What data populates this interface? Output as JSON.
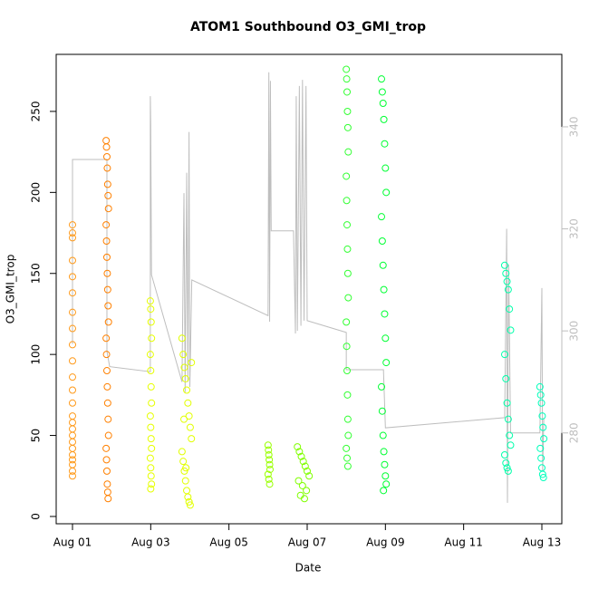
{
  "chart_data": {
    "type": "scatter",
    "title": "ATOM1 Southbound O3_GMI_trop",
    "xlabel": "Date",
    "ylabel": "O3_GMI_trop",
    "xlim": [
      0.583,
      13.51
    ],
    "ylim": [
      -4.5,
      285.2
    ],
    "y2lim": [
      262.2,
      354.2
    ],
    "xticks": [
      {
        "value": 1,
        "label": "Aug 01"
      },
      {
        "value": 3,
        "label": "Aug 03"
      },
      {
        "value": 5,
        "label": "Aug 05"
      },
      {
        "value": 7,
        "label": "Aug 07"
      },
      {
        "value": 9,
        "label": "Aug 09"
      },
      {
        "value": 11,
        "label": "Aug 11"
      },
      {
        "value": 13,
        "label": "Aug 13"
      }
    ],
    "yticks": [
      0,
      50,
      100,
      150,
      200,
      250
    ],
    "y2ticks": [
      280,
      300,
      320,
      340
    ],
    "y2color": "#bebebe",
    "series": [
      {
        "type": "line",
        "axis": "y2",
        "color": "#bebebe",
        "x": [
          1.0,
          1.0,
          1.88,
          1.88,
          1.95,
          2.99,
          2.99,
          3.0,
          3.02,
          3.8,
          3.85,
          3.88,
          3.92,
          3.95,
          3.98,
          4.0,
          4.05,
          6.0,
          6.02,
          6.04,
          6.06,
          6.08,
          6.65,
          6.7,
          6.72,
          6.75,
          6.8,
          6.84,
          6.88,
          6.92,
          6.97,
          7.0,
          8.0,
          8.0,
          8.95,
          9.0,
          12.05,
          12.1,
          12.12,
          12.15,
          12.2,
          12.95,
          13.0,
          13.02,
          13.05
        ],
        "values": [
          297.4,
          333.6,
          333.6,
          296,
          293,
          292,
          346,
          340.5,
          311,
          290,
          327,
          288,
          331,
          290,
          339,
          289,
          310,
          303,
          350.7,
          301.8,
          349,
          319.6,
          319.6,
          299.5,
          346,
          300,
          348,
          301,
          349.2,
          302,
          348,
          302,
          299.7,
          292.4,
          292.4,
          281,
          283,
          320,
          266.3,
          313,
          280,
          280,
          308.4,
          272.5,
          283
        ]
      },
      {
        "type": "points",
        "color": "#ff9a1a",
        "x": [
          1.0,
          1.0,
          1.0,
          1.0,
          1.0,
          1.0,
          1.0,
          1.0,
          1.0,
          1.0,
          1.0,
          1.0,
          1.0,
          1.0,
          1.0,
          1.0,
          1.0,
          1.0,
          1.0,
          1.0,
          1.0,
          1.0,
          1.0,
          1.0
        ],
        "values": [
          180,
          175,
          172,
          158,
          148,
          138,
          126,
          116,
          106,
          96,
          86,
          78,
          70,
          62,
          58,
          54,
          50,
          46,
          42,
          38,
          35,
          32,
          28,
          25
        ]
      },
      {
        "type": "points",
        "color": "#ff8000",
        "x": [
          1.86,
          1.87,
          1.88,
          1.89,
          1.9,
          1.91,
          1.92,
          1.86,
          1.87,
          1.88,
          1.89,
          1.9,
          1.91,
          1.92,
          1.86,
          1.87,
          1.88,
          1.89,
          1.9,
          1.91,
          1.92,
          1.86,
          1.87,
          1.88,
          1.89,
          1.9,
          1.91
        ],
        "values": [
          232,
          228,
          222,
          215,
          205,
          198,
          190,
          180,
          170,
          160,
          150,
          140,
          130,
          120,
          110,
          100,
          90,
          80,
          70,
          60,
          50,
          42,
          35,
          28,
          20,
          15,
          11
        ]
      },
      {
        "type": "points",
        "color": "#e6ff00",
        "x": [
          2.99,
          3.0,
          3.01,
          3.02,
          2.99,
          3.0,
          3.01,
          3.02,
          2.99,
          3.0,
          3.01,
          3.02,
          2.99,
          3.0,
          3.01,
          3.02,
          3.0
        ],
        "values": [
          133,
          128,
          120,
          110,
          100,
          90,
          80,
          70,
          62,
          55,
          48,
          42,
          36,
          30,
          25,
          20,
          17
        ]
      },
      {
        "type": "points",
        "color": "#e2ff00",
        "x": [
          3.8,
          3.83,
          3.86,
          3.89,
          3.92,
          3.95,
          3.98,
          4.01,
          4.04,
          3.8,
          3.83,
          3.86,
          3.89,
          3.92,
          3.95,
          3.98,
          4.01,
          4.04,
          3.85,
          3.9
        ],
        "values": [
          110,
          100,
          92,
          85,
          78,
          70,
          62,
          55,
          48,
          40,
          34,
          28,
          22,
          16,
          12,
          9,
          7,
          95,
          60,
          30
        ]
      },
      {
        "type": "points",
        "color": "#99ff00",
        "x": [
          6.0,
          6.01,
          6.02,
          6.03,
          6.04,
          6.05,
          6.0,
          6.02,
          6.04
        ],
        "values": [
          44,
          41,
          38,
          35,
          32,
          29,
          26,
          23,
          20
        ]
      },
      {
        "type": "points",
        "color": "#80ff00",
        "x": [
          6.75,
          6.8,
          6.85,
          6.9,
          6.95,
          7.0,
          7.05,
          6.78,
          6.88,
          6.98,
          6.83,
          6.93
        ],
        "values": [
          43,
          40,
          37,
          34,
          31,
          28,
          25,
          22,
          19,
          16,
          13,
          11
        ]
      },
      {
        "type": "points",
        "color": "#33ff33",
        "x": [
          8.0,
          8.01,
          8.02,
          8.03,
          8.04,
          8.05,
          8.0,
          8.01,
          8.02,
          8.03,
          8.04,
          8.05,
          8.0,
          8.01,
          8.02,
          8.03,
          8.04,
          8.05,
          8.0,
          8.02,
          8.04
        ],
        "values": [
          276,
          270,
          262,
          250,
          240,
          225,
          210,
          195,
          180,
          165,
          150,
          135,
          120,
          105,
          90,
          75,
          60,
          50,
          42,
          36,
          31
        ]
      },
      {
        "type": "points",
        "color": "#00ff33",
        "x": [
          8.9,
          8.92,
          8.94,
          8.96,
          8.98,
          9.0,
          9.02,
          8.9,
          8.92,
          8.94,
          8.96,
          8.98,
          9.0,
          9.02,
          8.9,
          8.92,
          8.94,
          8.96,
          8.98,
          9.0,
          9.02,
          8.95
        ],
        "values": [
          270,
          262,
          255,
          245,
          230,
          215,
          200,
          185,
          170,
          155,
          140,
          125,
          110,
          95,
          80,
          65,
          50,
          40,
          32,
          25,
          20,
          16
        ]
      },
      {
        "type": "points",
        "color": "#00ffaa",
        "x": [
          12.05,
          12.08,
          12.11,
          12.14,
          12.17,
          12.2,
          12.05,
          12.08,
          12.11,
          12.14,
          12.17,
          12.2,
          12.05,
          12.08,
          12.11,
          12.14
        ],
        "values": [
          155,
          150,
          145,
          140,
          128,
          115,
          100,
          85,
          70,
          60,
          50,
          44,
          38,
          33,
          30,
          28
        ]
      },
      {
        "type": "points",
        "color": "#00ffbb",
        "x": [
          12.95,
          12.97,
          12.99,
          13.01,
          13.03,
          13.05,
          12.96,
          12.98,
          13.0,
          13.02,
          13.04
        ],
        "values": [
          80,
          75,
          70,
          62,
          55,
          48,
          42,
          36,
          30,
          26,
          24
        ]
      }
    ]
  }
}
